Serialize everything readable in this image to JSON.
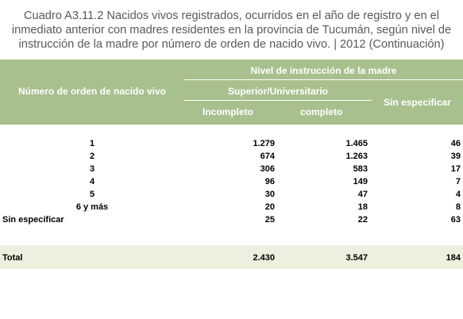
{
  "title_lines": [
    "Cuadro A3.11.2 Nacidos vivos registrados, ocurridos en el año de registro y en el",
    "inmediato anterior con madres residentes en la provincia de Tucumán, según nivel de",
    "instrucción de la madre por número de orden de nacido vivo. |  2012 (Continuación)"
  ],
  "header": {
    "row_label": "Número de orden de nacido vivo",
    "group": "Nivel de instrucción de la madre",
    "subgroup": "Superior/Universitario",
    "col_incomplete": "Incompleto",
    "col_complete": "completo",
    "col_unspecified": "Sin especificar"
  },
  "rows": [
    {
      "label": "1",
      "incompleto": "1.279",
      "completo": "1.465",
      "sin_especificar": "46"
    },
    {
      "label": "2",
      "incompleto": "674",
      "completo": "1.263",
      "sin_especificar": "39"
    },
    {
      "label": "3",
      "incompleto": "306",
      "completo": "583",
      "sin_especificar": "17"
    },
    {
      "label": "4",
      "incompleto": "96",
      "completo": "149",
      "sin_especificar": "7"
    },
    {
      "label": "5",
      "incompleto": "30",
      "completo": "47",
      "sin_especificar": "4"
    },
    {
      "label": "6 y más",
      "incompleto": "20",
      "completo": "18",
      "sin_especificar": "8"
    },
    {
      "label": "Sin especificar",
      "incompleto": "25",
      "completo": "22",
      "sin_especificar": "63"
    }
  ],
  "total": {
    "label": "Total",
    "incompleto": "2.430",
    "completo": "3.547",
    "sin_especificar": "184"
  },
  "colors": {
    "header_bg": "#a8c08e",
    "total_bg": "#ebf1de",
    "title_text": "#595959"
  }
}
